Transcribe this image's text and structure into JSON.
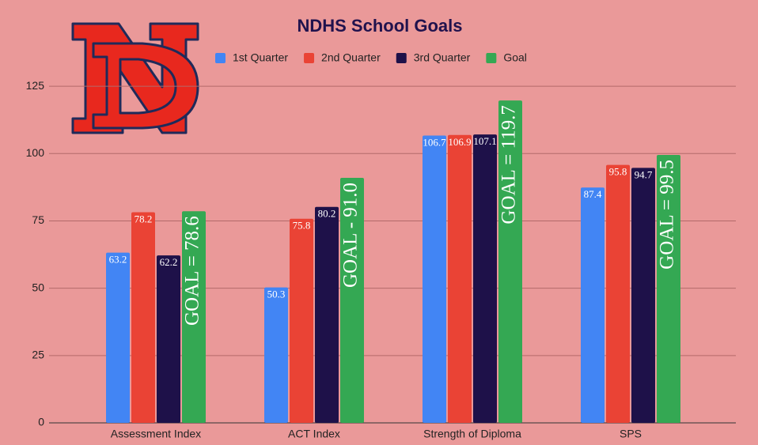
{
  "chart_data": {
    "type": "bar",
    "title": "NDHS School Goals",
    "categories": [
      "Assessment Index",
      "ACT Index",
      "Strength of Diploma",
      "SPS"
    ],
    "series": [
      {
        "name": "1st Quarter",
        "color": "#4285f4",
        "values": [
          63.2,
          50.3,
          106.7,
          87.4
        ]
      },
      {
        "name": "2nd Quarter",
        "color": "#ea4335",
        "values": [
          78.2,
          75.8,
          106.9,
          95.8
        ]
      },
      {
        "name": "3rd Quarter",
        "color": "#1e1149",
        "values": [
          62.2,
          80.2,
          107.1,
          94.7
        ]
      },
      {
        "name": "Goal",
        "color": "#34a853",
        "values": [
          78.6,
          91.0,
          119.7,
          99.5
        ],
        "value_labels": [
          "GOAL = 78.6",
          "GOAL - 91.0",
          "GOAL = 119.7",
          "GOAL = 99.5"
        ]
      }
    ],
    "ylim": [
      0,
      140
    ],
    "yticks": [
      0,
      25,
      50,
      75,
      100,
      125
    ],
    "grid": true,
    "legend": "top"
  }
}
